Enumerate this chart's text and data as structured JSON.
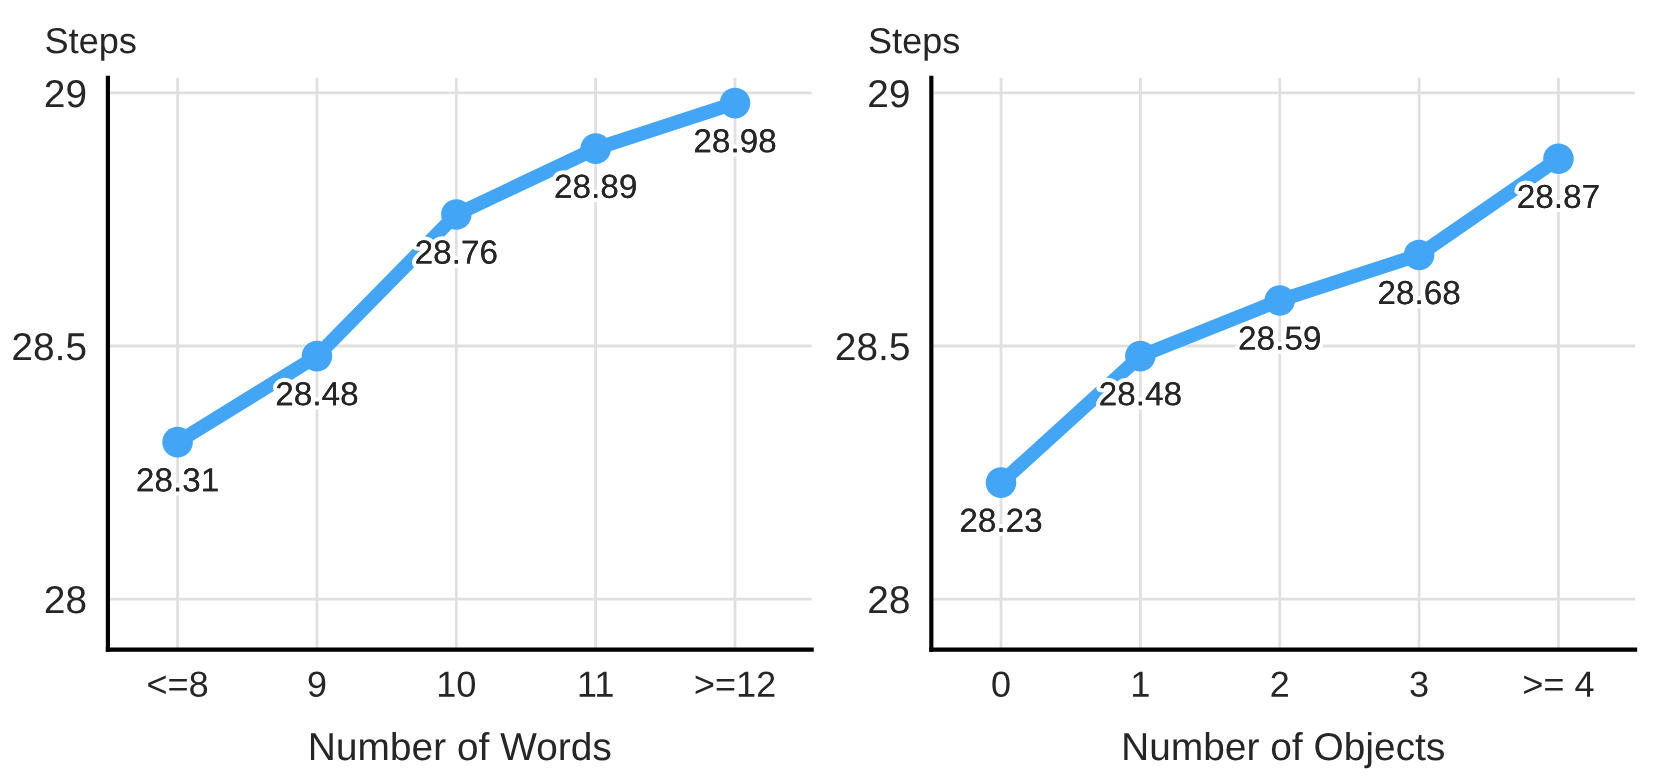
{
  "chart_data": [
    {
      "type": "line",
      "xlabel": "Number of Words",
      "ylabel": "Steps",
      "categories": [
        "<=8",
        "9",
        "10",
        "11",
        ">=12"
      ],
      "series": [
        {
          "color": "#42a5f5",
          "values": [
            28.31,
            28.48,
            28.76,
            28.89,
            28.98
          ]
        }
      ],
      "ylim": [
        27.9,
        29.03
      ],
      "yticks": [
        28,
        28.5,
        29
      ],
      "grid": true,
      "marker": "circle",
      "line_style": "solid",
      "data_labels": true
    },
    {
      "type": "line",
      "xlabel": "Number of Objects",
      "ylabel": "Steps",
      "categories": [
        "0",
        "1",
        "2",
        "3",
        ">= 4"
      ],
      "series": [
        {
          "color": "#42a5f5",
          "values": [
            28.23,
            28.48,
            28.59,
            28.68,
            28.87
          ]
        }
      ],
      "ylim": [
        27.9,
        29.03
      ],
      "yticks": [
        28,
        28.5,
        29
      ],
      "grid": true,
      "marker": "circle",
      "line_style": "solid",
      "data_labels": true
    }
  ]
}
